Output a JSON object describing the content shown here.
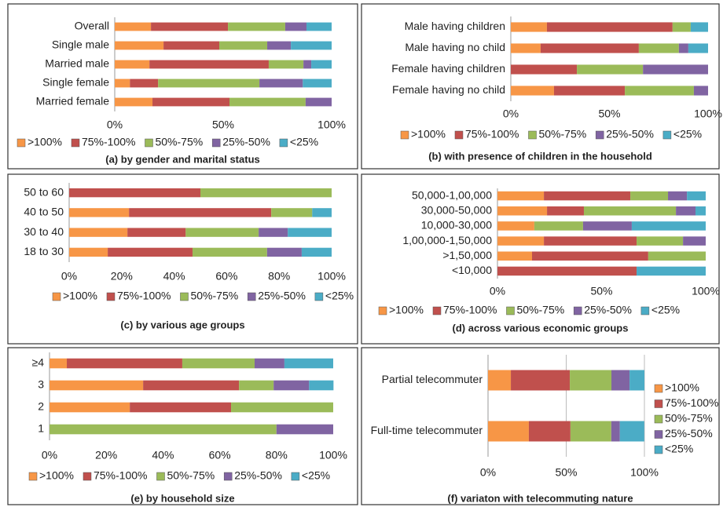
{
  "chart_data": [
    {
      "type": "bar",
      "orientation": "horizontal",
      "stacked": true,
      "title": "(a) by gender and marital status",
      "categories": [
        "Overall",
        "Single male",
        "Married male",
        "Single female",
        "Married female"
      ],
      "series": [
        {
          "name": ">100%",
          "color": "#f79646",
          "values": [
            16.7,
            22.5,
            16,
            7,
            17.4
          ]
        },
        {
          "name": "75%-100%",
          "color": "#c0504d",
          "values": [
            35.5,
            25.7,
            55,
            13,
            35.5
          ]
        },
        {
          "name": "50%-75%",
          "color": "#9bbb59",
          "values": [
            26.4,
            22.1,
            16,
            46.7,
            35.1
          ]
        },
        {
          "name": "25%-50%",
          "color": "#8064a2",
          "values": [
            9.8,
            10.9,
            3.6,
            20,
            12
          ]
        },
        {
          "name": "<25%",
          "color": "#4bacc6",
          "values": [
            11.6,
            18.8,
            9.4,
            13.3,
            0
          ]
        }
      ],
      "xlim": [
        0,
        100
      ],
      "xticks": [
        {
          "value": 0,
          "label": "0%"
        },
        {
          "value": 50,
          "label": "50%"
        },
        {
          "value": 100,
          "label": "100%"
        }
      ],
      "legend": "bottom",
      "grid": false
    },
    {
      "type": "bar",
      "orientation": "horizontal",
      "stacked": true,
      "title": "(b) with presence of children in the household",
      "categories": [
        "Male having children",
        "Male  having no child",
        "Female having children",
        "Female having no child"
      ],
      "series": [
        {
          "name": ">100%",
          "color": "#f79646",
          "values": [
            18.3,
            15.1,
            0,
            21.9
          ]
        },
        {
          "name": "75%-100%",
          "color": "#c0504d",
          "values": [
            63.7,
            49.8,
            33.5,
            35.9
          ]
        },
        {
          "name": "50%-75%",
          "color": "#9bbb59",
          "values": [
            9.2,
            20.3,
            33.5,
            35
          ]
        },
        {
          "name": "25%-50%",
          "color": "#8064a2",
          "values": [
            0,
            4.8,
            33,
            7.2
          ]
        },
        {
          "name": "<25%",
          "color": "#4bacc6",
          "values": [
            8.8,
            10,
            0,
            0
          ]
        }
      ],
      "xlim": [
        0,
        100
      ],
      "xticks": [
        {
          "value": 0,
          "label": "0%"
        },
        {
          "value": 50,
          "label": "50%"
        },
        {
          "value": 100,
          "label": "100%"
        }
      ],
      "legend": "bottom",
      "grid": false
    },
    {
      "type": "bar",
      "orientation": "horizontal",
      "stacked": true,
      "title": "(c) by various age groups",
      "categories": [
        "50 to 60",
        "40 to 50",
        "30 to 40",
        "18 to 30"
      ],
      "series": [
        {
          "name": ">100%",
          "color": "#f79646",
          "values": [
            0,
            22.8,
            22.2,
            14.7
          ]
        },
        {
          "name": "75%-100%",
          "color": "#c0504d",
          "values": [
            50,
            54.2,
            22.2,
            32.3
          ]
        },
        {
          "name": "50%-75%",
          "color": "#9bbb59",
          "values": [
            50,
            15.6,
            27.8,
            28.4
          ]
        },
        {
          "name": "25%-50%",
          "color": "#8064a2",
          "values": [
            0,
            0,
            11.1,
            13.2
          ]
        },
        {
          "name": "<25%",
          "color": "#4bacc6",
          "values": [
            0,
            7.4,
            16.7,
            11.4
          ]
        }
      ],
      "xlim": [
        0,
        100
      ],
      "xticks": [
        {
          "value": 0,
          "label": "0%"
        },
        {
          "value": 20,
          "label": "20%"
        },
        {
          "value": 40,
          "label": "40%"
        },
        {
          "value": 60,
          "label": "60%"
        },
        {
          "value": 80,
          "label": "80%"
        },
        {
          "value": 100,
          "label": "100%"
        }
      ],
      "legend": "bottom",
      "grid": false
    },
    {
      "type": "bar",
      "orientation": "horizontal",
      "stacked": true,
      "title": "(d) across various economic groups",
      "categories": [
        "50,000-1,00,000",
        "30,000-50,000",
        "10,000-30,000",
        "1,00,000-1,50,000",
        ">1,50,000",
        "<10,000"
      ],
      "series": [
        {
          "name": ">100%",
          "color": "#f79646",
          "values": [
            22.3,
            23.8,
            17.7,
            22.3,
            16.6,
            0
          ]
        },
        {
          "name": "75%-100%",
          "color": "#c0504d",
          "values": [
            41.5,
            17.7,
            0,
            44.5,
            55.8,
            66.8
          ]
        },
        {
          "name": "50%-75%",
          "color": "#9bbb59",
          "values": [
            18.1,
            44.2,
            23.4,
            22.3,
            27.6,
            0
          ]
        },
        {
          "name": "25%-50%",
          "color": "#8064a2",
          "values": [
            9.1,
            9.4,
            23.4,
            10.9,
            0,
            0
          ]
        },
        {
          "name": "<25%",
          "color": "#4bacc6",
          "values": [
            9,
            4.9,
            35.5,
            0,
            0,
            33.2
          ]
        }
      ],
      "xlim": [
        0,
        100
      ],
      "xticks": [
        {
          "value": 0,
          "label": "0%"
        },
        {
          "value": 50,
          "label": "50%"
        },
        {
          "value": 100,
          "label": "100%"
        }
      ],
      "legend": "bottom",
      "grid": false
    },
    {
      "type": "bar",
      "orientation": "horizontal",
      "stacked": true,
      "title": "(e) by household size",
      "categories": [
        "≥4",
        "3",
        "2",
        "1"
      ],
      "series": [
        {
          "name": ">100%",
          "color": "#f79646",
          "values": [
            6.1,
            33,
            28.3,
            0
          ]
        },
        {
          "name": "75%-100%",
          "color": "#c0504d",
          "values": [
            40.7,
            33.8,
            35.7,
            0
          ]
        },
        {
          "name": "50%-75%",
          "color": "#9bbb59",
          "values": [
            25.5,
            12.2,
            36,
            80
          ]
        },
        {
          "name": "25%-50%",
          "color": "#8064a2",
          "values": [
            10.5,
            12.5,
            0,
            20
          ]
        },
        {
          "name": "<25%",
          "color": "#4bacc6",
          "values": [
            17.2,
            8.6,
            0,
            0
          ]
        }
      ],
      "xlim": [
        0,
        100
      ],
      "xticks": [
        {
          "value": 0,
          "label": "0%"
        },
        {
          "value": 20,
          "label": "20%"
        },
        {
          "value": 40,
          "label": "40%"
        },
        {
          "value": 60,
          "label": "60%"
        },
        {
          "value": 80,
          "label": "80%"
        },
        {
          "value": 100,
          "label": "100%"
        }
      ],
      "legend": "bottom",
      "grid": false
    },
    {
      "type": "bar",
      "orientation": "horizontal",
      "stacked": true,
      "title": "(f) variaton with telecommuting nature",
      "categories": [
        "Partial telecommuter",
        "Full-time telecommuter"
      ],
      "series": [
        {
          "name": ">100%",
          "color": "#f79646",
          "values": [
            14.6,
            26.1
          ]
        },
        {
          "name": "75%-100%",
          "color": "#c0504d",
          "values": [
            37.7,
            26.6
          ]
        },
        {
          "name": "50%-75%",
          "color": "#9bbb59",
          "values": [
            26.6,
            26.1
          ]
        },
        {
          "name": "25%-50%",
          "color": "#8064a2",
          "values": [
            11.6,
            5.5
          ]
        },
        {
          "name": "<25%",
          "color": "#4bacc6",
          "values": [
            9.5,
            15.6
          ]
        }
      ],
      "xlim": [
        0,
        100
      ],
      "xticks": [
        {
          "value": 0,
          "label": "0%"
        },
        {
          "value": 50,
          "label": "50%"
        },
        {
          "value": 100,
          "label": "100%"
        }
      ],
      "legend": "right",
      "grid": true
    }
  ]
}
